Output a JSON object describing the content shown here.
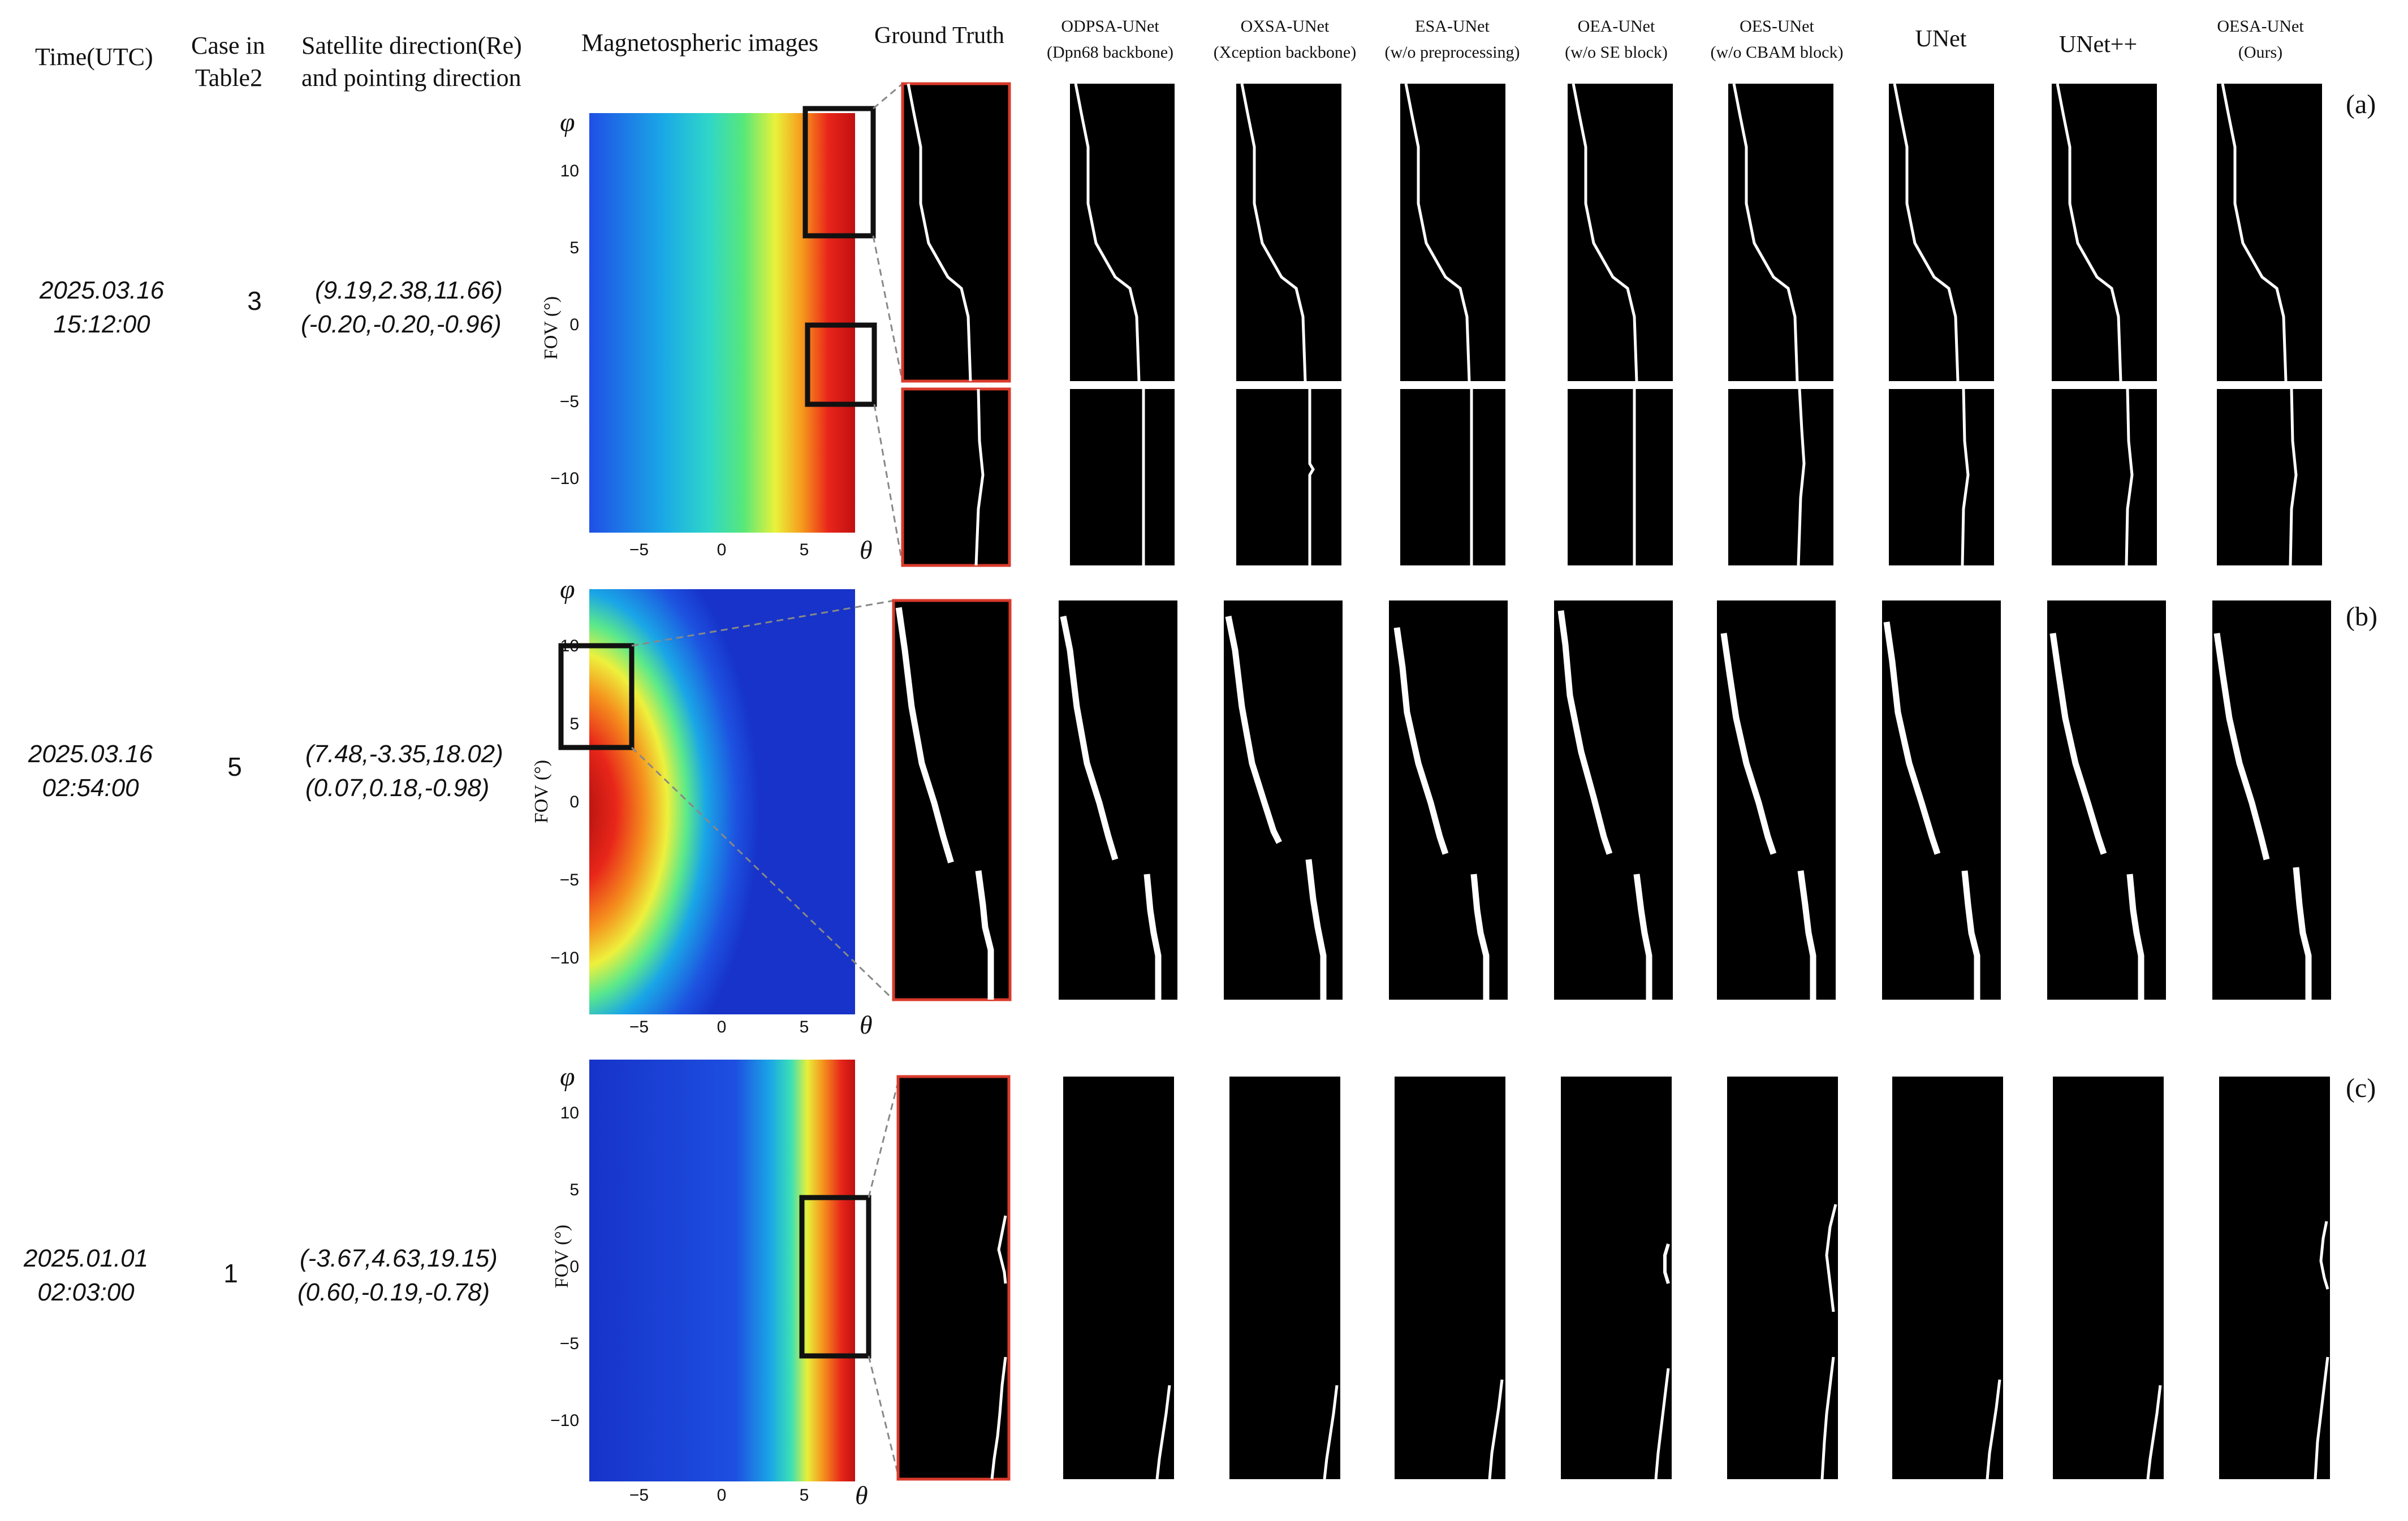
{
  "headers": {
    "time": "Time(UTC)",
    "case_line1": "Case in",
    "case_line2": "Table2",
    "sat_line1": "Satellite direction(Re)",
    "sat_line2": "and pointing direction",
    "magimg": "Magnetospheric images",
    "ground_truth": "Ground Truth"
  },
  "models": [
    {
      "line1": "ODPSA-UNet",
      "line2": "(Dpn68 backbone)"
    },
    {
      "line1": "OXSA-UNet",
      "line2": "(Xception backbone)"
    },
    {
      "line1": "ESA-UNet",
      "line2": "(w/o preprocessing)"
    },
    {
      "line1": "OEA-UNet",
      "line2": "(w/o SE block)"
    },
    {
      "line1": "OES-UNet",
      "line2": "(w/o CBAM block)"
    },
    {
      "line1": "UNet",
      "line2": ""
    },
    {
      "line1": "UNet++",
      "line2": ""
    },
    {
      "line1": "OESA-UNet",
      "line2": "(Ours)"
    }
  ],
  "rows": [
    {
      "time_date": "2025.03.16",
      "time_clock": "15:12:00",
      "case": "3",
      "sat_pos": "(9.19,2.38,11.66)",
      "pointing": "(-0.20,-0.20,-0.96)",
      "label": "(a)"
    },
    {
      "time_date": "2025.03.16",
      "time_clock": "02:54:00",
      "case": "5",
      "sat_pos": "(7.48,-3.35,18.02)",
      "pointing": "(0.07,0.18,-0.98)",
      "label": "(b)"
    },
    {
      "time_date": "2025.01.01",
      "time_clock": "02:03:00",
      "case": "1",
      "sat_pos": "(-3.67,4.63,19.15)",
      "pointing": "(0.60,-0.19,-0.78)",
      "label": "(c)"
    }
  ],
  "axes": {
    "phi": "φ",
    "theta": "θ",
    "fov": "FOV (°)",
    "y_ticks": [
      "10",
      "5",
      "0",
      "−5",
      "−10"
    ],
    "x_ticks": [
      "−5",
      "0",
      "5"
    ]
  },
  "colors": {
    "gt_border": "#d93a2b",
    "mask_bg": "#000000",
    "mask_line": "#ffffff",
    "box": "#111111"
  }
}
